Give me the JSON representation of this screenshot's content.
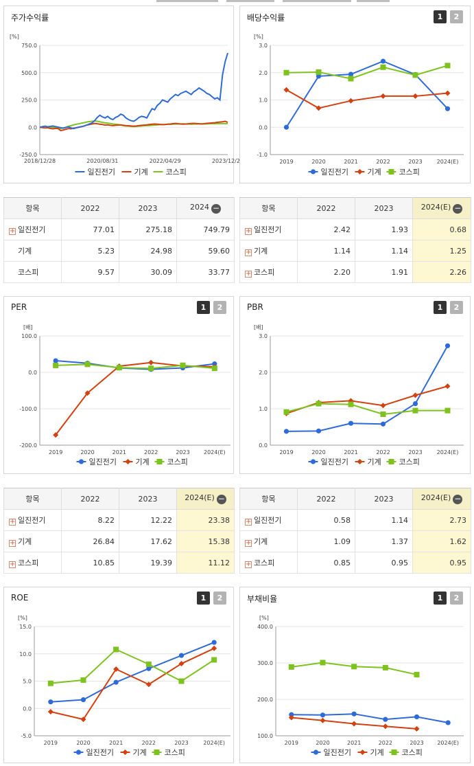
{
  "legend_labels": [
    "일진전기",
    "기계",
    "코스피"
  ],
  "colors": {
    "ilji": "#2e6bd8",
    "machine": "#d2410f",
    "kospi": "#7dc21e"
  },
  "buttons": {
    "one": "1",
    "two": "2"
  },
  "tables": {
    "stock": {
      "headers": [
        "항목",
        "2022",
        "2023",
        "2024"
      ],
      "rows": [
        {
          "name": "일진전기",
          "values": [
            "77.01",
            "275.18",
            "749.79"
          ]
        },
        {
          "name": "기계",
          "values": [
            "5.23",
            "24.98",
            "59.60"
          ]
        },
        {
          "name": "코스피",
          "values": [
            "9.57",
            "30.09",
            "33.77"
          ]
        }
      ]
    },
    "dividend": {
      "headers": [
        "항목",
        "2022",
        "2023",
        "2024(E)"
      ],
      "rows": [
        {
          "name": "일진전기",
          "values": [
            "2.42",
            "1.93",
            "0.68"
          ]
        },
        {
          "name": "기계",
          "values": [
            "1.14",
            "1.14",
            "1.25"
          ]
        },
        {
          "name": "코스피",
          "values": [
            "2.20",
            "1.91",
            "2.26"
          ]
        }
      ]
    },
    "per": {
      "headers": [
        "항목",
        "2022",
        "2023",
        "2024(E)"
      ],
      "rows": [
        {
          "name": "일진전기",
          "values": [
            "8.22",
            "12.22",
            "23.38"
          ]
        },
        {
          "name": "기계",
          "values": [
            "26.84",
            "17.62",
            "15.38"
          ]
        },
        {
          "name": "코스피",
          "values": [
            "10.85",
            "19.39",
            "11.12"
          ]
        }
      ]
    },
    "pbr": {
      "headers": [
        "항목",
        "2022",
        "2023",
        "2024(E)"
      ],
      "rows": [
        {
          "name": "일진전기",
          "values": [
            "0.58",
            "1.14",
            "2.73"
          ]
        },
        {
          "name": "기계",
          "values": [
            "1.09",
            "1.37",
            "1.62"
          ]
        },
        {
          "name": "코스피",
          "values": [
            "0.85",
            "0.95",
            "0.95"
          ]
        }
      ]
    }
  },
  "chart_data": [
    {
      "id": "stock",
      "type": "line",
      "title": "주가수익률",
      "unit": "[%]",
      "x_ticks": [
        "2018/12/28",
        "2020/08/31",
        "2022/04/29",
        "2023/12/28"
      ],
      "yticks": [
        750.0,
        500.0,
        250.0,
        0.0,
        -250.0
      ],
      "ylim": [
        -250,
        750
      ],
      "series": [
        {
          "name": "일진전기",
          "values": [
            0,
            5,
            10,
            4,
            8,
            12,
            6,
            2,
            -4,
            -8,
            -2,
            3,
            -6,
            -12,
            -4,
            2,
            6,
            12,
            20,
            30,
            40,
            60,
            90,
            110,
            95,
            85,
            100,
            80,
            70,
            90,
            100,
            120,
            110,
            85,
            70,
            60,
            55,
            70,
            90,
            100,
            95,
            85,
            130,
            170,
            160,
            200,
            220,
            250,
            240,
            230,
            260,
            280,
            300,
            290,
            310,
            320,
            330,
            315,
            300,
            325,
            340,
            360,
            345,
            330,
            310,
            300,
            280,
            260,
            270,
            250,
            480,
            600,
            680
          ]
        },
        {
          "name": "기계",
          "values": [
            0,
            -3,
            -6,
            -4,
            -10,
            -14,
            -10,
            -12,
            -30,
            -25,
            -18,
            -12,
            -14,
            -8,
            -5,
            0,
            5,
            12,
            20,
            25,
            30,
            35,
            32,
            28,
            25,
            20,
            22,
            18,
            15,
            18,
            20,
            22,
            18,
            15,
            14,
            12,
            10,
            12,
            15,
            18,
            20,
            22,
            25,
            28,
            30,
            28,
            26,
            24,
            25,
            28,
            30,
            33,
            35,
            32,
            30,
            28,
            30,
            32,
            35,
            36,
            34,
            32,
            30,
            33,
            36,
            38,
            40,
            42,
            45,
            48,
            50,
            55,
            45
          ]
        },
        {
          "name": "코스피",
          "values": [
            0,
            6,
            10,
            5,
            3,
            0,
            -5,
            -8,
            -12,
            -6,
            0,
            10,
            15,
            22,
            28,
            32,
            38,
            42,
            48,
            52,
            55,
            58,
            55,
            50,
            45,
            40,
            38,
            35,
            30,
            28,
            25,
            20,
            15,
            12,
            10,
            8,
            6,
            8,
            10,
            12,
            14,
            15,
            16,
            18,
            20,
            22,
            24,
            25,
            26,
            28,
            27,
            28,
            30,
            30,
            31,
            32,
            30,
            29,
            28,
            29,
            30,
            31,
            32,
            30,
            31,
            32,
            33,
            33,
            34,
            34,
            34,
            34,
            34
          ]
        }
      ]
    },
    {
      "id": "dividend",
      "type": "line",
      "title": "배당수익률",
      "unit": "[%]",
      "categories": [
        "2019",
        "2020",
        "2021",
        "2022",
        "2023",
        "2024(E)"
      ],
      "yticks": [
        3.0,
        2.0,
        1.0,
        0.0,
        -1.0
      ],
      "ylim": [
        -1,
        3
      ],
      "series": [
        {
          "name": "일진전기",
          "values": [
            0.0,
            1.87,
            1.94,
            2.42,
            1.93,
            0.68
          ]
        },
        {
          "name": "기계",
          "values": [
            1.37,
            0.7,
            0.97,
            1.14,
            1.14,
            1.25
          ]
        },
        {
          "name": "코스피",
          "values": [
            2.0,
            2.02,
            1.78,
            2.2,
            1.91,
            2.26
          ]
        }
      ]
    },
    {
      "id": "per",
      "type": "line",
      "title": "PER",
      "unit": "[배]",
      "categories": [
        "2019",
        "2020",
        "2021",
        "2022",
        "2023",
        "2024(E)"
      ],
      "yticks": [
        100.0,
        0.0,
        -100.0,
        -200.0
      ],
      "ylim": [
        -200,
        100
      ],
      "series": [
        {
          "name": "일진전기",
          "values": [
            32,
            25,
            12,
            8.22,
            12.22,
            23.38
          ]
        },
        {
          "name": "기계",
          "values": [
            -172,
            -57,
            17,
            26.84,
            17.62,
            15.38
          ]
        },
        {
          "name": "코스피",
          "values": [
            19,
            22,
            13,
            10.85,
            19.39,
            11.12
          ]
        }
      ]
    },
    {
      "id": "pbr",
      "type": "line",
      "title": "PBR",
      "unit": "[배]",
      "categories": [
        "2019",
        "2020",
        "2021",
        "2022",
        "2023",
        "2024(E)"
      ],
      "yticks": [
        3.0,
        2.0,
        1.0,
        0.0
      ],
      "ylim": [
        0,
        3
      ],
      "series": [
        {
          "name": "일진전기",
          "values": [
            0.38,
            0.39,
            0.6,
            0.58,
            1.14,
            2.73
          ]
        },
        {
          "name": "기계",
          "values": [
            0.87,
            1.17,
            1.22,
            1.09,
            1.37,
            1.62
          ]
        },
        {
          "name": "코스피",
          "values": [
            0.91,
            1.14,
            1.12,
            0.85,
            0.95,
            0.95
          ]
        }
      ]
    },
    {
      "id": "roe",
      "type": "line",
      "title": "ROE",
      "unit": "[%]",
      "categories": [
        "2019",
        "2020",
        "2021",
        "2022",
        "2023",
        "2024(E)"
      ],
      "yticks": [
        15.0,
        10.0,
        5.0,
        0.0,
        -5.0
      ],
      "ylim": [
        -5,
        15
      ],
      "series": [
        {
          "name": "일진전기",
          "values": [
            1.2,
            1.6,
            4.8,
            7.3,
            9.7,
            12.1
          ]
        },
        {
          "name": "기계",
          "values": [
            -0.6,
            -2.0,
            7.2,
            4.4,
            8.2,
            11.0
          ]
        },
        {
          "name": "코스피",
          "values": [
            4.6,
            5.2,
            10.8,
            8.1,
            5.0,
            8.9
          ]
        }
      ]
    },
    {
      "id": "debt",
      "type": "line",
      "title": "부채비율",
      "unit": "[%]",
      "categories": [
        "2019",
        "2020",
        "2021",
        "2022",
        "2023",
        "2024(E)"
      ],
      "yticks": [
        400.0,
        300.0,
        200.0,
        100.0
      ],
      "ylim": [
        100,
        400
      ],
      "series": [
        {
          "name": "일진전기",
          "values": [
            158,
            157,
            160,
            145,
            152,
            136
          ]
        },
        {
          "name": "기계",
          "values": [
            150,
            142,
            133,
            126,
            119,
            null
          ]
        },
        {
          "name": "코스피",
          "values": [
            289,
            301,
            290,
            287,
            268,
            null
          ]
        }
      ]
    }
  ]
}
